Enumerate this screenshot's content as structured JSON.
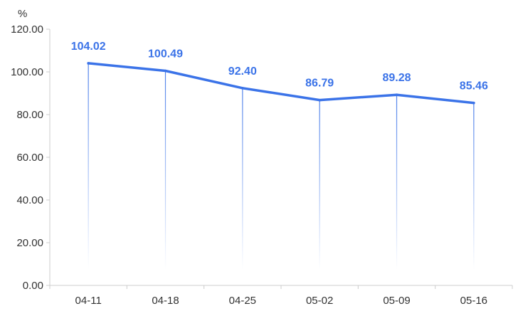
{
  "chart_data": {
    "type": "line",
    "unit_label": "%",
    "categories": [
      "04-11",
      "04-18",
      "04-25",
      "05-02",
      "05-09",
      "05-16"
    ],
    "values": [
      104.02,
      100.49,
      92.4,
      86.79,
      89.28,
      85.46
    ],
    "value_labels": [
      "104.02",
      "100.49",
      "92.40",
      "86.79",
      "89.28",
      "85.46"
    ],
    "y_ticks": [
      "0.00",
      "20.00",
      "40.00",
      "60.00",
      "80.00",
      "100.00",
      "120.00"
    ],
    "ylim": [
      0,
      120
    ],
    "grid": false,
    "legend": "none",
    "colors": {
      "line": "#3b73e8",
      "axis": "#cccccc",
      "text": "#333333"
    }
  }
}
